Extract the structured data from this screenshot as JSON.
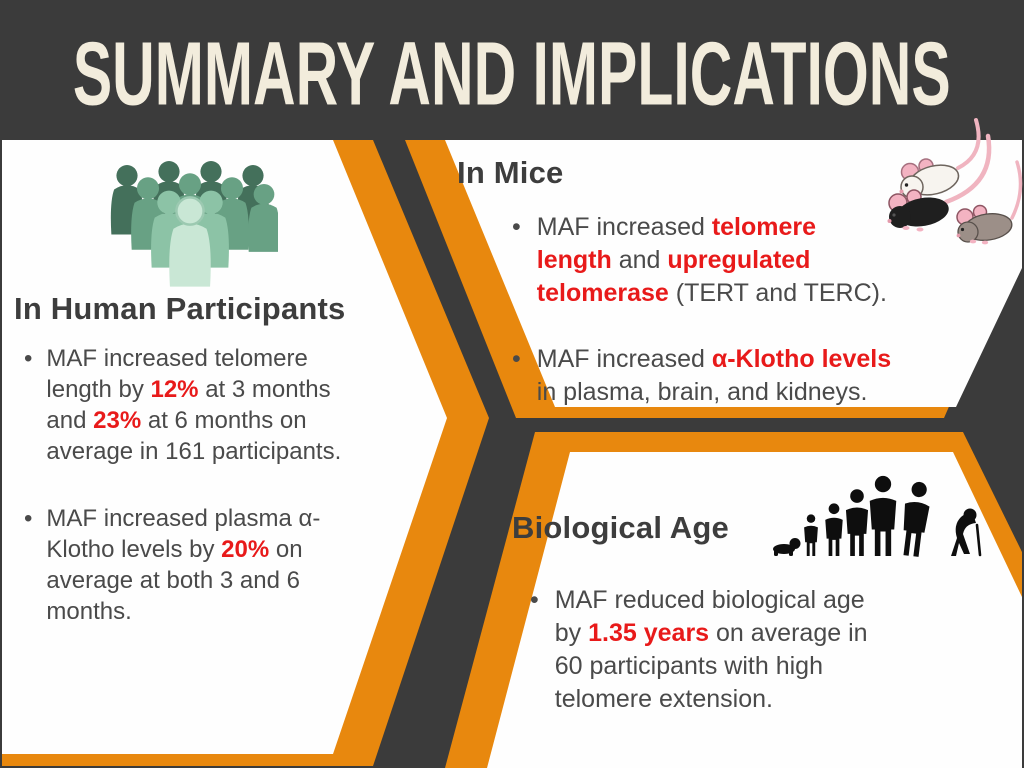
{
  "slide": {
    "title": "SUMMARY AND IMPLICATIONS"
  },
  "colors": {
    "orange": "#E8880E",
    "dark_gray": "#3B3B3B",
    "accent_red": "#E81A1A",
    "title_cream": "#F2ECDC"
  },
  "sections": {
    "human": {
      "heading": "In Human Participants",
      "icon": "crowd-icon",
      "bullets": [
        {
          "segments": [
            {
              "text": "MAF increased telomere\nlength by "
            },
            {
              "text": "12%",
              "em": true
            },
            {
              "text": " at 3 months\nand "
            },
            {
              "text": "23%",
              "em": true
            },
            {
              "text": " at 6 months on\naverage in 161 participants."
            }
          ]
        },
        {
          "segments": [
            {
              "text": "MAF increased plasma α-\nKlotho levels by "
            },
            {
              "text": "20%",
              "em": true
            },
            {
              "text": " on\naverage at both 3 and 6\nmonths."
            }
          ]
        }
      ]
    },
    "mice": {
      "heading": "In Mice",
      "icon": "mice-icon",
      "bullets": [
        {
          "segments": [
            {
              "text": "MAF increased "
            },
            {
              "text": "telomere\nlength",
              "em": true
            },
            {
              "text": " and "
            },
            {
              "text": "upregulated\ntelomerase",
              "em": true
            },
            {
              "text": " (TERT and TERC)."
            }
          ]
        },
        {
          "segments": [
            {
              "text": "MAF increased "
            },
            {
              "text": "α-Klotho levels",
              "em": true
            },
            {
              "text": "\nin plasma, brain, and kidneys."
            }
          ]
        }
      ]
    },
    "bioage": {
      "heading": "Biological Age",
      "icon": "aging-progression-icon",
      "bullets": [
        {
          "segments": [
            {
              "text": "MAF reduced biological age\nby "
            },
            {
              "text": "1.35 years",
              "em": true
            },
            {
              "text": " on average in\n60 participants with high\ntelomere extension."
            }
          ]
        }
      ]
    }
  }
}
